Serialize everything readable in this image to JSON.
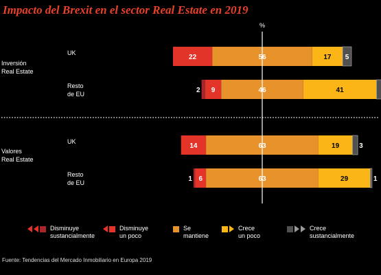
{
  "title": "Impacto del Brexit en el sector Real Estate en 2019",
  "chart_data": {
    "type": "bar",
    "stacked": true,
    "orientation": "horizontal",
    "diverging": true,
    "unit": "%",
    "groups": [
      {
        "name": "Inversión\nReal Estate",
        "rows": [
          {
            "label": "UK",
            "values": [
              0,
              22,
              56,
              17,
              5
            ]
          },
          {
            "label": "Resto\nde EU",
            "values": [
              2,
              9,
              46,
              41,
              3
            ]
          }
        ]
      },
      {
        "name": "Valores\nReal Estate",
        "rows": [
          {
            "label": "UK",
            "values": [
              0,
              14,
              63,
              19,
              3
            ]
          },
          {
            "label": "Resto\nde EU",
            "values": [
              1,
              6,
              63,
              29,
              1
            ]
          }
        ]
      }
    ],
    "segments": [
      {
        "name": "Disminuye\nsustancialmente",
        "color": "#a8262a"
      },
      {
        "name": "Disminuye\nun poco",
        "color": "#e3342a"
      },
      {
        "name": "Se\nmantiene",
        "color": "#e8922c"
      },
      {
        "name": "Crece\nun poco",
        "color": "#fbb516"
      },
      {
        "name": "Crece\nsustancialmente",
        "color": "#505050"
      }
    ]
  },
  "source": "Fuente: Tendencias del Mercado Inmobiliario en Europa 2019"
}
